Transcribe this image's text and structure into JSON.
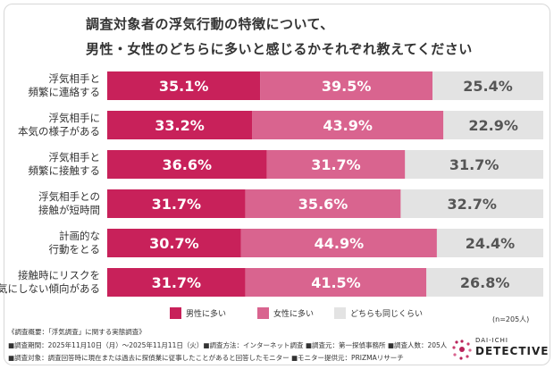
{
  "chart_data": {
    "type": "bar",
    "stacked": "percent",
    "orientation": "horizontal",
    "title": "調査対象者の浮気行動の特徴について、男性・女性のどちらに多いと感じるかそれぞれ教えてください",
    "title_lines": [
      "調査対象者の浮気行動の特徴について、",
      "男性・女性のどちらに多いと感じるかそれぞれ教えてください"
    ],
    "categories": [
      [
        "浮気相手と",
        "頻繁に連絡する"
      ],
      [
        "浮気相手に",
        "本気の様子がある"
      ],
      [
        "浮気相手と",
        "頻繁に接触する"
      ],
      [
        "浮気相手との",
        "接触が短時間"
      ],
      [
        "計画的な",
        "行動をとる"
      ],
      [
        "接触時にリスクを",
        "気にしない傾向がある"
      ]
    ],
    "series": [
      {
        "name": "男性に多い",
        "color": "#c8215a",
        "values": [
          35.1,
          33.2,
          36.6,
          31.7,
          30.7,
          31.7
        ],
        "labels": [
          "35.1%",
          "33.2%",
          "36.6%",
          "31.7%",
          "30.7%",
          "31.7%"
        ]
      },
      {
        "name": "女性に多い",
        "color": "#d9648f",
        "values": [
          39.5,
          43.9,
          31.7,
          35.6,
          44.9,
          41.5
        ],
        "labels": [
          "39.5%",
          "43.9%",
          "31.7%",
          "35.6%",
          "44.9%",
          "41.5%"
        ]
      },
      {
        "name": "どちらも同じくらい",
        "color": "#e3e3e3",
        "values": [
          25.4,
          22.9,
          31.7,
          32.7,
          24.4,
          26.8
        ],
        "labels": [
          "25.4%",
          "22.9%",
          "31.7%",
          "32.7%",
          "24.4%",
          "26.8%"
        ]
      }
    ],
    "legend_position": "bottom",
    "grid": false
  },
  "n_note": "(n=205人)",
  "footer": {
    "line1": "《調査概要：「浮気調査」に関する実態調査》",
    "line2": "■調査期間：2025年11月10日（月）〜2025年11月11日（火）■調査方法：インターネット調査 ■調査元：第一探偵事務所 ■調査人数：205人",
    "line3": "■調査対象：調査回答時に現在または過去に探偵業に従事したことがあると回答したモニター ■モニター提供元：PRIZMAリサーチ"
  },
  "logo": {
    "sub": "DAI-ICHI",
    "main": "DETECTIVE"
  }
}
